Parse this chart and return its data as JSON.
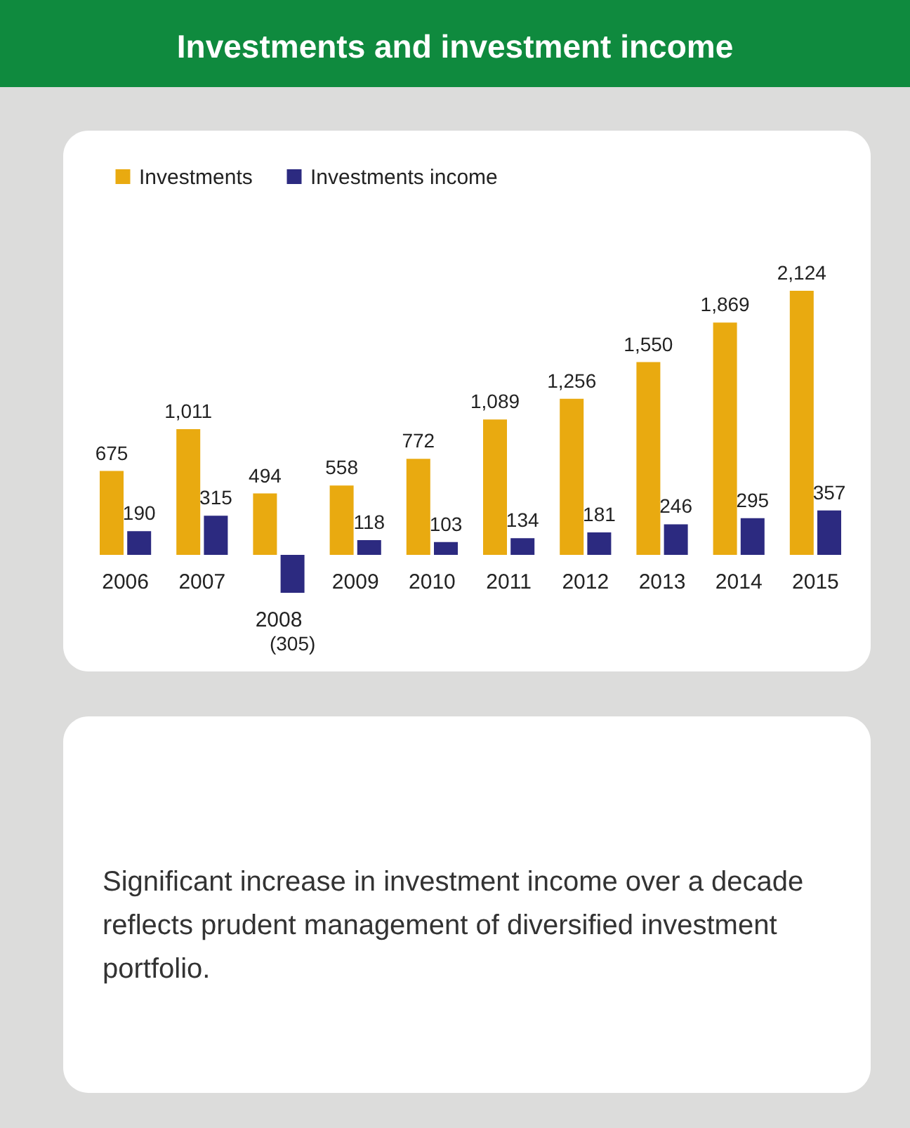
{
  "chart_data": {
    "type": "bar",
    "title": "Investments and investment income",
    "categories": [
      "2006",
      "2007",
      "2008",
      "2009",
      "2010",
      "2011",
      "2012",
      "2013",
      "2014",
      "2015"
    ],
    "series": [
      {
        "name": "Investments",
        "color": "#e9aa10",
        "values": [
          675,
          1011,
          494,
          558,
          772,
          1089,
          1256,
          1550,
          1869,
          2124
        ],
        "value_labels": [
          "675",
          "1,011",
          "494",
          "558",
          "772",
          "1,089",
          "1,256",
          "1,550",
          "1,869",
          "2,124"
        ]
      },
      {
        "name": "Investments income",
        "color": "#2c2a80",
        "values": [
          190,
          315,
          -305,
          118,
          103,
          134,
          181,
          246,
          295,
          357
        ],
        "value_labels": [
          "190",
          "315",
          "(305)",
          "118",
          "103",
          "134",
          "181",
          "246",
          "295",
          "357"
        ]
      }
    ],
    "legend": "top left",
    "annotations": [
      "Significant increase in investment income over a decade reflects prudent management of diversified investment portfolio."
    ]
  }
}
